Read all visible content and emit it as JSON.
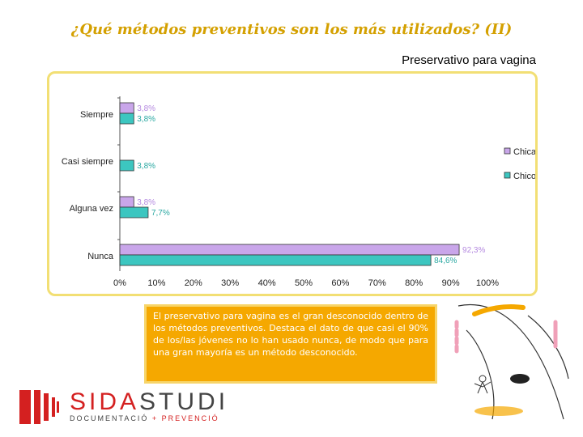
{
  "title": "¿Qué métodos preventivos son los más utilizados? (II)",
  "subtitle": "Preservativo para vagina",
  "chart_data": {
    "type": "bar",
    "orientation": "horizontal",
    "title": "Preservativo para vagina",
    "categories": [
      "Siempre",
      "Casi siempre",
      "Alguna vez",
      "Nunca"
    ],
    "series": [
      {
        "name": "Chica",
        "color": "#c9a6ea",
        "values": [
          3.8,
          0,
          3.8,
          92.3
        ],
        "labels": [
          "3,8%",
          "",
          "3,8%",
          "92,3%"
        ]
      },
      {
        "name": "Chico",
        "color": "#3cc6c0",
        "values": [
          3.8,
          3.8,
          7.7,
          84.6
        ],
        "labels": [
          "3,8%",
          "3,8%",
          "7,7%",
          "84,6%"
        ]
      }
    ],
    "xlim": [
      0,
      100
    ],
    "ticks": [
      "0%",
      "10%",
      "20%",
      "30%",
      "40%",
      "50%",
      "60%",
      "70%",
      "80%",
      "90%",
      "100%"
    ],
    "legend": "right",
    "grid": false
  },
  "note": "El preservativo para vagina es el gran desconocido dentro de los métodos preventivos. Destaca el dato de que casi el 90% de los/las jóvenes no lo han usado nunca, de modo que para una gran mayoría es un método desconocido.",
  "logo": {
    "sida": "SIDA",
    "studi": "STUDI",
    "tag_a": "DOCUMENTACIÓ",
    "tag_b": "+ PREVENCIÓ"
  },
  "colors": {
    "accent": "#f5a800",
    "title": "#d4a000",
    "brand": "#d42020"
  }
}
